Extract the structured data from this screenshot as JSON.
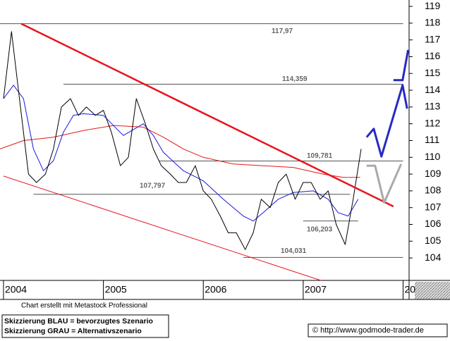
{
  "chart_data": {
    "type": "line",
    "xlim": [
      2003.965,
      2008.06
    ],
    "ylim": [
      102.66,
      119.38
    ],
    "xticks": [
      2004,
      2005,
      2006,
      2007,
      {
        "value": 2008,
        "label": "20"
      }
    ],
    "yticks": [
      104,
      105,
      106,
      107,
      108,
      109,
      110,
      111,
      112,
      113,
      114,
      115,
      116,
      117,
      118,
      119
    ],
    "reference_lines": [
      {
        "value": 117.97,
        "label": "117,97",
        "x": [
          2003.965,
          2008.0
        ]
      },
      {
        "value": 114.359,
        "label": "114,359",
        "x": [
          2004.6,
          2008.0
        ]
      },
      {
        "value": 109.781,
        "label": "109,781",
        "x": [
          2005.56,
          2008.0
        ]
      },
      {
        "value": 107.797,
        "label": "107,797",
        "x": [
          2004.3,
          2007.47
        ]
      },
      {
        "value": 106.203,
        "label": "106,203",
        "x": [
          2007.0,
          2007.55
        ]
      },
      {
        "value": 104.031,
        "label": "104,031",
        "x": [
          2006.4,
          2008.0
        ]
      }
    ],
    "series": [
      {
        "color": "#e01818",
        "width": 1,
        "x": [
          2003.965,
          2004.2,
          2004.5,
          2004.8,
          2005.1,
          2005.4,
          2005.6,
          2005.8,
          2006.0,
          2006.3,
          2006.6,
          2006.9,
          2007.2,
          2007.4,
          2007.57
        ],
        "values": [
          110.5,
          111.0,
          111.2,
          111.6,
          111.9,
          111.8,
          111.2,
          110.5,
          110.0,
          109.6,
          109.5,
          109.4,
          109.0,
          108.8,
          108.8
        ]
      },
      {
        "color": "#1818e0",
        "width": 1,
        "x": [
          2004.0,
          2004.1,
          2004.2,
          2004.3,
          2004.4,
          2004.5,
          2004.6,
          2004.7,
          2004.8,
          2005.0,
          2005.2,
          2005.4,
          2005.5,
          2005.6,
          2005.8,
          2006.0,
          2006.2,
          2006.4,
          2006.5,
          2006.6,
          2006.75,
          2006.9,
          2007.1,
          2007.25,
          2007.35,
          2007.45,
          2007.55
        ],
        "values": [
          113.5,
          114.3,
          113.5,
          110.5,
          109.2,
          109.8,
          111.5,
          112.5,
          112.6,
          112.5,
          111.3,
          112.0,
          111.3,
          110.3,
          109.2,
          108.6,
          107.5,
          106.5,
          106.2,
          106.7,
          107.5,
          107.9,
          108.0,
          107.5,
          106.7,
          106.5,
          107.5
        ]
      },
      {
        "color": "#000000",
        "width": 1,
        "x": [
          2004.0,
          2004.08,
          2004.17,
          2004.25,
          2004.33,
          2004.42,
          2004.5,
          2004.58,
          2004.67,
          2004.75,
          2004.83,
          2004.92,
          2005.0,
          2005.08,
          2005.17,
          2005.25,
          2005.33,
          2005.42,
          2005.5,
          2005.58,
          2005.67,
          2005.75,
          2005.83,
          2005.92,
          2006.0,
          2006.08,
          2006.17,
          2006.25,
          2006.33,
          2006.42,
          2006.5,
          2006.58,
          2006.67,
          2006.75,
          2006.83,
          2006.92,
          2007.0,
          2007.08,
          2007.17,
          2007.25,
          2007.33,
          2007.42,
          2007.5,
          2007.58
        ],
        "values": [
          113.5,
          117.5,
          113.0,
          109.0,
          108.5,
          109.0,
          110.5,
          113.0,
          113.5,
          112.5,
          113.0,
          112.5,
          112.8,
          111.5,
          109.5,
          110.0,
          113.5,
          112.0,
          110.5,
          109.5,
          109.0,
          108.5,
          108.5,
          109.5,
          108.0,
          107.5,
          106.5,
          105.5,
          105.5,
          104.5,
          105.5,
          107.5,
          107.0,
          108.5,
          109.0,
          107.5,
          108.5,
          108.5,
          107.5,
          108.0,
          106.0,
          104.8,
          107.5,
          110.5
        ]
      },
      {
        "color": "#e8141e",
        "width": 2.5,
        "x": [
          2004.177,
          2007.903
        ],
        "values": [
          117.97,
          107.07
        ]
      },
      {
        "color": "#e8141e",
        "width": 1,
        "x": [
          2004.0,
          2007.176
        ],
        "values": [
          108.88,
          102.66
        ]
      },
      {
        "color": "#aaaaaa",
        "width": 3,
        "x": [
          2007.635,
          2007.72,
          2007.81,
          2007.98
        ],
        "values": [
          109.5,
          109.5,
          107.3,
          109.6
        ]
      },
      {
        "color": "#2828c8",
        "width": 3,
        "x": [
          2007.635,
          2007.706,
          2007.783,
          2007.995,
          2008.04
        ],
        "values": [
          111.2,
          111.7,
          110.05,
          114.3,
          112.9
        ]
      },
      {
        "color": "#2828c8",
        "width": 3,
        "x": [
          2007.903,
          2007.995,
          2008.05
        ],
        "values": [
          114.6,
          114.6,
          116.4
        ]
      }
    ]
  },
  "footer": {
    "credit": "Chart erstellt mit Metastock Professional",
    "legend_blue": "Skizzierung BLAU = bevorzugtes Szenario",
    "legend_gray": "Skizzierung GRAU = Alternativszenario",
    "url": "© http://www.godmode-trader.de"
  }
}
